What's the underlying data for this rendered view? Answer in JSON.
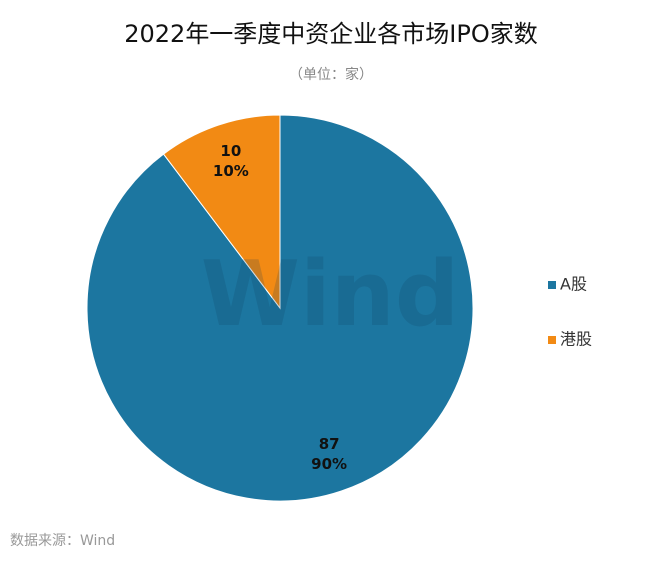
{
  "chart_data": {
    "type": "pie",
    "title": "2022年一季度中资企业各市场IPO家数",
    "subtitle": "（单位：家）",
    "categories": [
      "A股",
      "港股"
    ],
    "values": [
      87,
      10
    ],
    "percent_labels": [
      "90%",
      "10%"
    ],
    "colors": [
      "#1c76a0",
      "#f28a14"
    ],
    "legend": "right",
    "watermark": "Wind",
    "source": "数据来源：Wind"
  }
}
